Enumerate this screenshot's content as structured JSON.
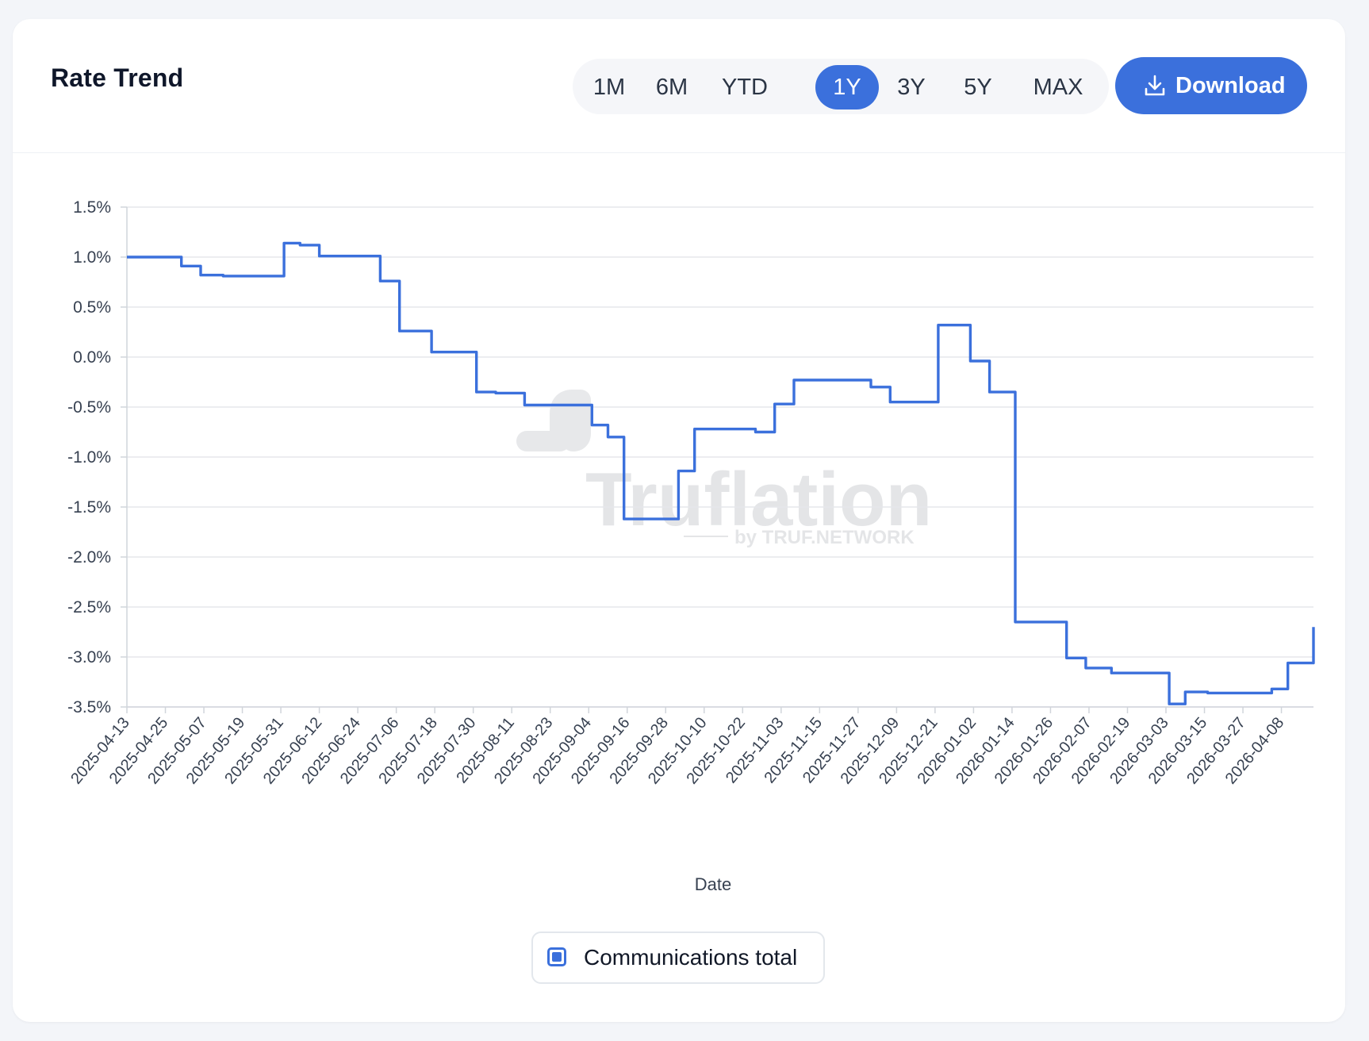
{
  "header": {
    "title": "Rate Trend",
    "ranges": [
      {
        "label": "1M",
        "active": false
      },
      {
        "label": "6M",
        "active": false
      },
      {
        "label": "YTD",
        "active": false
      },
      {
        "label": "1Y",
        "active": true
      },
      {
        "label": "3Y",
        "active": false
      },
      {
        "label": "5Y",
        "active": false
      },
      {
        "label": "MAX",
        "active": false
      }
    ],
    "download_label": "Download",
    "download_icon": "download-icon"
  },
  "watermark": {
    "brand": "Truflation",
    "sub": "by TRUF.NETWORK"
  },
  "colors": {
    "accent": "#3b70dc",
    "grid": "#e5e7eb",
    "axis_text": "#374151"
  },
  "chart_data": {
    "type": "line",
    "step": true,
    "xlabel": "Date",
    "ylabel": "",
    "yunit": "%",
    "ylim": [
      -3.5,
      1.5
    ],
    "yticks": [
      "1.5%",
      "1.0%",
      "0.5%",
      "0.0%",
      "-0.5%",
      "-1.0%",
      "-1.5%",
      "-2.0%",
      "-2.5%",
      "-3.0%",
      "-3.5%"
    ],
    "xlim": [
      "2025-04-13",
      "2026-04-18"
    ],
    "xticks": [
      "2025-04-13",
      "2025-04-25",
      "2025-05-07",
      "2025-05-19",
      "2025-05-31",
      "2025-06-12",
      "2025-06-24",
      "2025-07-06",
      "2025-07-18",
      "2025-07-30",
      "2025-08-11",
      "2025-08-23",
      "2025-09-04",
      "2025-09-16",
      "2025-09-28",
      "2025-10-10",
      "2025-10-22",
      "2025-11-03",
      "2025-11-15",
      "2025-11-27",
      "2025-12-09",
      "2025-12-21",
      "2026-01-02",
      "2026-01-14",
      "2026-01-26",
      "2026-02-07",
      "2026-02-19",
      "2026-03-03",
      "2026-03-15",
      "2026-03-27",
      "2026-04-08"
    ],
    "grid": true,
    "legend_position": "bottom",
    "series": [
      {
        "name": "Communications total",
        "color": "#3b70dc",
        "points": [
          [
            "2025-04-13",
            1.0
          ],
          [
            "2025-04-30",
            0.91
          ],
          [
            "2025-05-06",
            0.82
          ],
          [
            "2025-05-13",
            0.81
          ],
          [
            "2025-06-01",
            1.14
          ],
          [
            "2025-06-06",
            1.12
          ],
          [
            "2025-06-12",
            1.01
          ],
          [
            "2025-07-01",
            0.76
          ],
          [
            "2025-07-07",
            0.26
          ],
          [
            "2025-07-17",
            0.05
          ],
          [
            "2025-07-31",
            -0.35
          ],
          [
            "2025-08-06",
            -0.36
          ],
          [
            "2025-08-15",
            -0.48
          ],
          [
            "2025-09-05",
            -0.68
          ],
          [
            "2025-09-10",
            -0.8
          ],
          [
            "2025-09-15",
            -1.62
          ],
          [
            "2025-10-02",
            -1.14
          ],
          [
            "2025-10-07",
            -0.72
          ],
          [
            "2025-10-26",
            -0.75
          ],
          [
            "2025-11-01",
            -0.47
          ],
          [
            "2025-11-07",
            -0.23
          ],
          [
            "2025-12-01",
            -0.3
          ],
          [
            "2025-12-07",
            -0.45
          ],
          [
            "2025-12-22",
            0.32
          ],
          [
            "2026-01-01",
            -0.04
          ],
          [
            "2026-01-07",
            -0.35
          ],
          [
            "2026-01-15",
            -2.65
          ],
          [
            "2026-01-31",
            -3.01
          ],
          [
            "2026-02-06",
            -3.11
          ],
          [
            "2026-02-14",
            -3.16
          ],
          [
            "2026-03-04",
            -3.47
          ],
          [
            "2026-03-09",
            -3.35
          ],
          [
            "2026-03-16",
            -3.36
          ],
          [
            "2026-04-05",
            -3.32
          ],
          [
            "2026-04-10",
            -3.06
          ],
          [
            "2026-04-15",
            -3.06
          ],
          [
            "2026-04-18",
            -2.7
          ]
        ]
      }
    ]
  }
}
